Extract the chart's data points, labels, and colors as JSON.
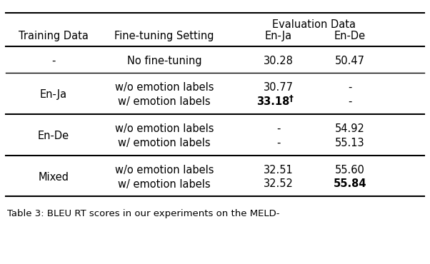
{
  "col_headers_top": [
    "",
    "",
    "Evaluation Data",
    ""
  ],
  "col_headers_sub": [
    "Training Data",
    "Fine-tuning Setting",
    "En-Ja",
    "En-De"
  ],
  "rows": [
    {
      "training": "-",
      "setting": "No fine-tuning",
      "en_ja": "30.28",
      "en_de": "50.47",
      "en_ja_bold": false,
      "en_de_bold": false,
      "en_ja_dagger": false
    },
    {
      "training": "En-Ja",
      "setting": "w/o emotion labels",
      "en_ja": "30.77",
      "en_de": "-",
      "en_ja_bold": false,
      "en_de_bold": false,
      "en_ja_dagger": false
    },
    {
      "training": "",
      "setting": "w/ emotion labels",
      "en_ja": "33.18",
      "en_de": "-",
      "en_ja_bold": true,
      "en_de_bold": false,
      "en_ja_dagger": true
    },
    {
      "training": "En-De",
      "setting": "w/o emotion labels",
      "en_ja": "-",
      "en_de": "54.92",
      "en_ja_bold": false,
      "en_de_bold": false,
      "en_ja_dagger": false
    },
    {
      "training": "",
      "setting": "w/ emotion labels",
      "en_ja": "-",
      "en_de": "55.13",
      "en_ja_bold": false,
      "en_de_bold": false,
      "en_ja_dagger": false
    },
    {
      "training": "Mixed",
      "setting": "w/o emotion labels",
      "en_ja": "32.51",
      "en_de": "55.60",
      "en_ja_bold": false,
      "en_de_bold": false,
      "en_ja_dagger": false
    },
    {
      "training": "",
      "setting": "w/ emotion labels",
      "en_ja": "32.52",
      "en_de": "55.84",
      "en_ja_bold": false,
      "en_de_bold": true,
      "en_ja_dagger": false
    }
  ],
  "caption": "Table 3: BLEU RT scores in our experiments on the MELD-",
  "background_color": "#ffffff",
  "text_color": "#000000",
  "font_size": 10.5
}
